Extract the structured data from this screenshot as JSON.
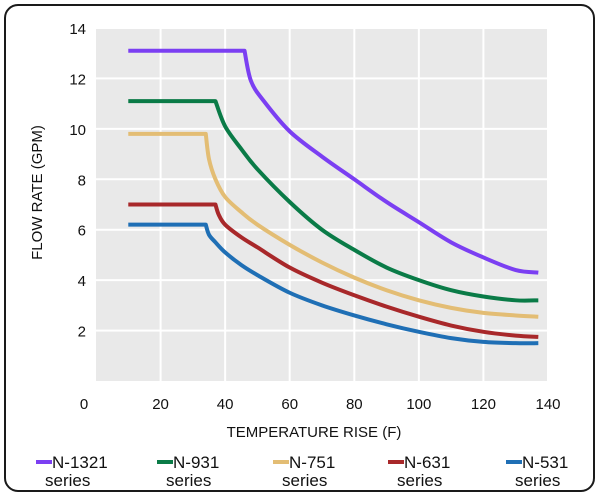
{
  "chart_data": {
    "type": "line",
    "title": "",
    "xlabel": "TEMPERATURE RISE (F)",
    "ylabel": "FLOW RATE (GPM)",
    "xlim": [
      0,
      140
    ],
    "ylim": [
      0,
      14
    ],
    "xticks": [
      0,
      20,
      40,
      60,
      80,
      100,
      120,
      140
    ],
    "yticks": [
      2,
      4,
      6,
      8,
      10,
      12,
      14
    ],
    "grid": true,
    "legend_position": "bottom",
    "series": [
      {
        "name": "N-1321",
        "legend_line2": "series",
        "color": "#7b3ff2",
        "x": [
          10,
          46,
          48,
          52,
          60,
          70,
          80,
          90,
          100,
          110,
          120,
          130,
          137
        ],
        "y": [
          13.1,
          13.1,
          11.9,
          11.1,
          9.9,
          8.9,
          8.0,
          7.1,
          6.3,
          5.5,
          4.9,
          4.4,
          4.3
        ]
      },
      {
        "name": "N-931",
        "legend_line2": "series",
        "color": "#0a7b47",
        "x": [
          10,
          37,
          40,
          45,
          50,
          60,
          70,
          80,
          90,
          100,
          110,
          120,
          130,
          137
        ],
        "y": [
          11.1,
          11.1,
          10.1,
          9.2,
          8.4,
          7.1,
          6.0,
          5.2,
          4.5,
          4.0,
          3.6,
          3.35,
          3.2,
          3.2
        ]
      },
      {
        "name": "N-751",
        "legend_line2": "series",
        "color": "#e3bd74",
        "x": [
          10,
          34,
          35,
          37,
          40,
          45,
          50,
          60,
          70,
          80,
          90,
          100,
          110,
          120,
          130,
          137
        ],
        "y": [
          9.8,
          9.8,
          8.8,
          8.0,
          7.3,
          6.7,
          6.2,
          5.4,
          4.7,
          4.1,
          3.6,
          3.2,
          2.9,
          2.7,
          2.6,
          2.55
        ]
      },
      {
        "name": "N-631",
        "legend_line2": "series",
        "color": "#a8282a",
        "x": [
          10,
          37,
          38,
          40,
          45,
          50,
          60,
          70,
          80,
          90,
          100,
          110,
          120,
          130,
          137
        ],
        "y": [
          7.0,
          7.0,
          6.6,
          6.2,
          5.7,
          5.3,
          4.5,
          3.9,
          3.4,
          2.95,
          2.55,
          2.2,
          1.95,
          1.8,
          1.75
        ]
      },
      {
        "name": "N-531",
        "legend_line2": "series",
        "color": "#1f6fb5",
        "x": [
          10,
          34,
          35,
          37,
          40,
          45,
          50,
          60,
          70,
          80,
          90,
          100,
          110,
          120,
          130,
          137
        ],
        "y": [
          6.2,
          6.2,
          5.8,
          5.5,
          5.1,
          4.6,
          4.2,
          3.5,
          3.0,
          2.6,
          2.25,
          1.95,
          1.7,
          1.55,
          1.5,
          1.5
        ]
      }
    ]
  }
}
